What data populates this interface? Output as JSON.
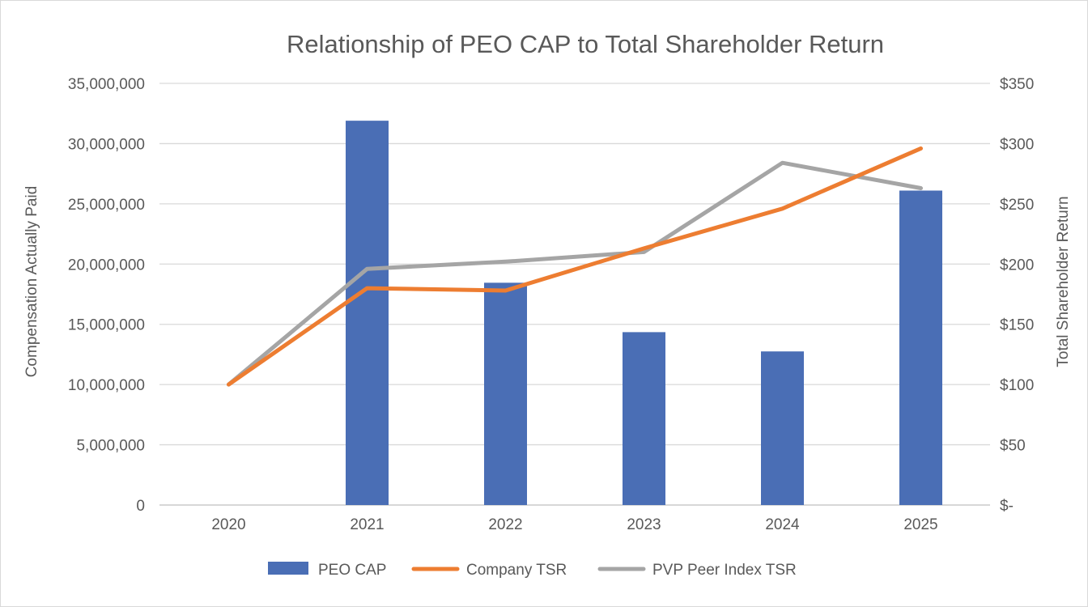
{
  "chart_data": {
    "type": "bar",
    "title": "Relationship of PEO CAP to Total Shareholder Return",
    "categories": [
      "2020",
      "2021",
      "2022",
      "2023",
      "2024",
      "2025"
    ],
    "y_left": {
      "label": "Compensation Actually Paid",
      "min": 0,
      "max": 35000000,
      "step": 5000000,
      "tick_labels": [
        "0",
        "5,000,000",
        "10,000,000",
        "15,000,000",
        "20,000,000",
        "25,000,000",
        "30,000,000",
        "35,000,000"
      ]
    },
    "y_right": {
      "label": "Total Shareholder Return",
      "min": 0,
      "max": 350,
      "step": 50,
      "tick_labels": [
        "$-",
        "$50",
        "$100",
        "$150",
        "$200",
        "$250",
        "$300",
        "$350"
      ]
    },
    "grid": true,
    "legend_position": "bottom",
    "series": [
      {
        "name": "PEO CAP",
        "type": "bar",
        "axis": "left",
        "color": "#4a6eb5",
        "values": [
          null,
          31900000,
          18450000,
          14350000,
          12750000,
          26100000
        ]
      },
      {
        "name": "Company TSR",
        "type": "line",
        "axis": "right",
        "color": "#ed7d31",
        "values": [
          100,
          180,
          178,
          213,
          246,
          296
        ]
      },
      {
        "name": "PVP Peer Index TSR",
        "type": "line",
        "axis": "right",
        "color": "#a5a5a5",
        "values": [
          100,
          196,
          202,
          210,
          284,
          263
        ]
      }
    ]
  }
}
